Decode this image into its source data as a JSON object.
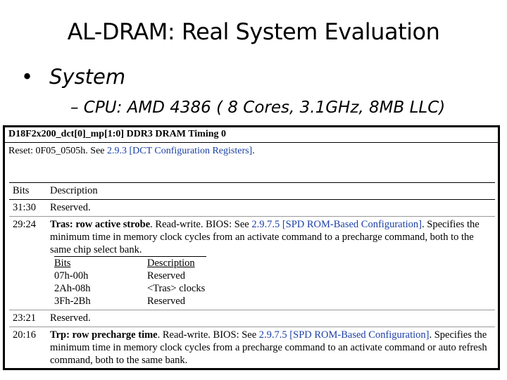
{
  "slide": {
    "title": "AL-DRAM: Real System Evaluation",
    "bullet_symbol": "•",
    "bullet": "System",
    "sub_bullet": "– CPU: AMD 4386 ( 8 Cores, 3.1GHz, 8MB LLC)"
  },
  "doc": {
    "header": "D18F2x200_dct[0]_mp[1:0] DDR3 DRAM Timing 0",
    "reset_prefix": "Reset: 0F05_0505h.  See ",
    "reset_link": "2.9.3 [DCT Configuration Registers]",
    "reset_suffix": ".",
    "col_bits": "Bits",
    "col_desc": "Description",
    "rows": [
      {
        "bits": "31:30",
        "desc": "Reserved."
      },
      {
        "bits": "29:24",
        "name": "Tras: row active strobe",
        "pre": ". Read-write. BIOS: See ",
        "link": "2.9.7.5 [SPD ROM-Based Configuration]",
        "post": ". Specifies the minimum time in memory clock cycles from an activate command to a precharge command, both to the same chip select bank."
      },
      {
        "bits": "23:21",
        "desc": "Reserved."
      },
      {
        "bits": "20:16",
        "name": "Trp: row precharge time",
        "pre": ". Read-write. BIOS: See ",
        "link": "2.9.7.5 [SPD ROM-Based Configuration]",
        "post": ". Specifies the minimum time in memory clock cycles from a precharge command to an activate command or auto refresh command, both to the same bank."
      }
    ],
    "subtable": {
      "head": [
        "Bits",
        "Description"
      ],
      "rows": [
        [
          "07h-00h",
          "Reserved"
        ],
        [
          "2Ah-08h",
          "<Tras> clocks"
        ],
        [
          "3Fh-2Bh",
          "Reserved"
        ]
      ]
    }
  }
}
